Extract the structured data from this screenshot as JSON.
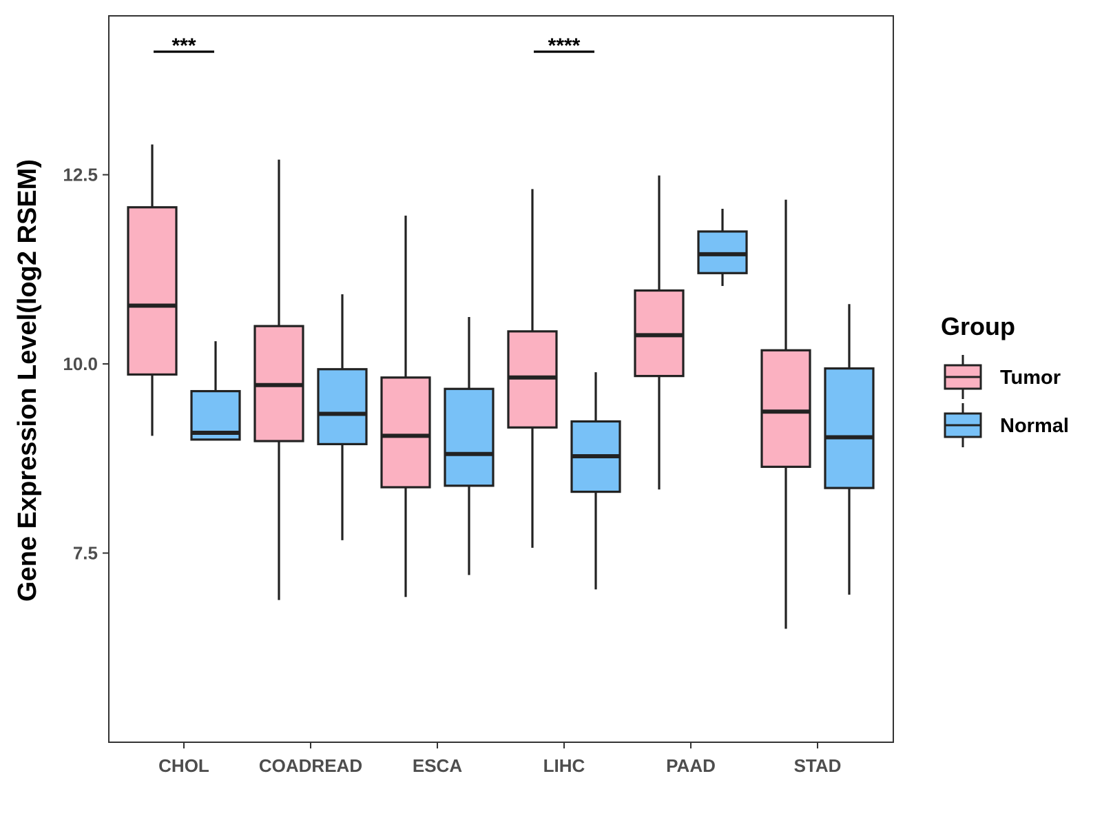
{
  "chart_data": {
    "type": "boxplot",
    "ylabel": "Gene Expression Level(log2 RSEM)",
    "xlabel": "",
    "ylim": [
      5.0,
      14.6
    ],
    "yticks": [
      7.5,
      10.0,
      12.5
    ],
    "ytick_labels": [
      "7.5",
      "10.0",
      "12.5"
    ],
    "categories": [
      "CHOL",
      "COADREAD",
      "ESCA",
      "LIHC",
      "PAAD",
      "STAD"
    ],
    "legend": {
      "title": "Group",
      "position": "right",
      "entries": [
        {
          "name": "Tumor",
          "color": "#FBB1C1"
        },
        {
          "name": "Normal",
          "color": "#78C1F7"
        }
      ]
    },
    "series": [
      {
        "name": "Tumor",
        "color": "#FBB1C1",
        "boxes": [
          {
            "category": "CHOL",
            "whisker_low": 9.05,
            "q1": 9.86,
            "median": 10.77,
            "q3": 12.07,
            "whisker_high": 12.9
          },
          {
            "category": "COADREAD",
            "whisker_low": 6.88,
            "q1": 8.98,
            "median": 9.72,
            "q3": 10.5,
            "whisker_high": 12.7
          },
          {
            "category": "ESCA",
            "whisker_low": 6.92,
            "q1": 8.37,
            "median": 9.05,
            "q3": 9.82,
            "whisker_high": 11.96
          },
          {
            "category": "LIHC",
            "whisker_low": 7.57,
            "q1": 9.16,
            "median": 9.82,
            "q3": 10.43,
            "whisker_high": 12.31
          },
          {
            "category": "PAAD",
            "whisker_low": 8.34,
            "q1": 9.84,
            "median": 10.38,
            "q3": 10.97,
            "whisker_high": 12.49
          },
          {
            "category": "STAD",
            "whisker_low": 6.5,
            "q1": 8.64,
            "median": 9.37,
            "q3": 10.18,
            "whisker_high": 12.17
          }
        ]
      },
      {
        "name": "Normal",
        "color": "#78C1F7",
        "boxes": [
          {
            "category": "CHOL",
            "whisker_low": 9.0,
            "q1": 9.0,
            "median": 9.09,
            "q3": 9.64,
            "whisker_high": 10.3
          },
          {
            "category": "COADREAD",
            "whisker_low": 7.67,
            "q1": 8.94,
            "median": 9.34,
            "q3": 9.93,
            "whisker_high": 10.92
          },
          {
            "category": "ESCA",
            "whisker_low": 7.21,
            "q1": 8.39,
            "median": 8.81,
            "q3": 9.67,
            "whisker_high": 10.62
          },
          {
            "category": "LIHC",
            "whisker_low": 7.02,
            "q1": 8.31,
            "median": 8.78,
            "q3": 9.24,
            "whisker_high": 9.89
          },
          {
            "category": "PAAD",
            "whisker_low": 11.03,
            "q1": 11.2,
            "median": 11.45,
            "q3": 11.75,
            "whisker_high": 12.05
          },
          {
            "category": "STAD",
            "whisker_low": 6.95,
            "q1": 8.36,
            "median": 9.03,
            "q3": 9.94,
            "whisker_high": 10.79
          }
        ]
      }
    ],
    "annotations": [
      {
        "category": "CHOL",
        "label": "***"
      },
      {
        "category": "LIHC",
        "label": "****"
      }
    ]
  }
}
